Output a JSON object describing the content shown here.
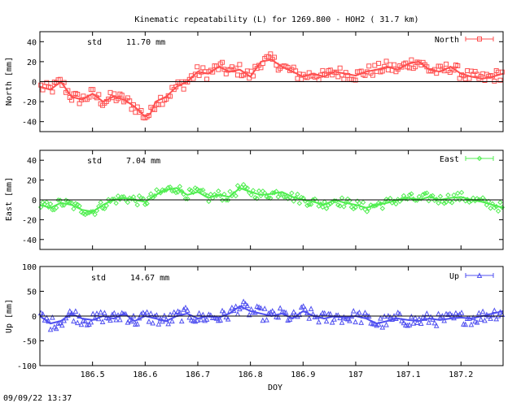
{
  "title": "Kinematic repeatability (L) for 1269.800 - HOH2  ( 31.7 km)",
  "timestamp": "09/09/22 13:37",
  "xlabel": "DOY",
  "std_label": "std",
  "colors": {
    "north": "#ff5050",
    "east": "#50ee50",
    "up": "#5050f0"
  },
  "chart_data": [
    {
      "type": "scatter",
      "name": "North",
      "ylabel": "North [mm]",
      "std": "11.70 mm",
      "marker": "square",
      "xlim": [
        186.4,
        187.28
      ],
      "ylim": [
        -50,
        50
      ],
      "yticks": [
        -40,
        -20,
        0,
        20,
        40
      ],
      "xticks": [
        186.5,
        186.6,
        186.7,
        186.8,
        186.9,
        187.0,
        187.1,
        187.2
      ],
      "xtick_labels": [],
      "grid": false,
      "legend": "top-right",
      "x": [
        186.4,
        186.42,
        186.44,
        186.46,
        186.48,
        186.5,
        186.52,
        186.54,
        186.56,
        186.58,
        186.6,
        186.61,
        186.62,
        186.64,
        186.66,
        186.68,
        186.7,
        186.72,
        186.74,
        186.76,
        186.78,
        186.8,
        186.82,
        186.84,
        186.86,
        186.88,
        186.9,
        186.92,
        186.94,
        186.96,
        186.98,
        187.0,
        187.02,
        187.04,
        187.06,
        187.08,
        187.1,
        187.12,
        187.14,
        187.16,
        187.18,
        187.2,
        187.22,
        187.24,
        187.26,
        187.28
      ],
      "y": [
        -5,
        -8,
        0,
        -15,
        -18,
        -12,
        -20,
        -15,
        -18,
        -25,
        -35,
        -32,
        -20,
        -15,
        -5,
        0,
        10,
        8,
        15,
        10,
        12,
        5,
        20,
        22,
        15,
        10,
        5,
        8,
        5,
        10,
        8,
        6,
        10,
        12,
        15,
        12,
        18,
        20,
        12,
        10,
        15,
        8,
        5,
        3,
        5,
        8
      ],
      "spread": 6
    },
    {
      "type": "scatter",
      "name": "East",
      "ylabel": "East [mm]",
      "std": "7.04 mm",
      "marker": "diamond",
      "xlim": [
        186.4,
        187.28
      ],
      "ylim": [
        -50,
        50
      ],
      "yticks": [
        -40,
        -20,
        0,
        20,
        40
      ],
      "xticks": [
        186.5,
        186.6,
        186.7,
        186.8,
        186.9,
        187.0,
        187.1,
        187.2
      ],
      "xtick_labels": [],
      "grid": false,
      "legend": "top-right",
      "x": [
        186.4,
        186.42,
        186.44,
        186.46,
        186.48,
        186.5,
        186.52,
        186.54,
        186.56,
        186.58,
        186.6,
        186.62,
        186.64,
        186.66,
        186.68,
        186.7,
        186.72,
        186.74,
        186.76,
        186.78,
        186.8,
        186.82,
        186.84,
        186.86,
        186.88,
        186.9,
        186.92,
        186.94,
        186.96,
        186.98,
        187.0,
        187.02,
        187.04,
        187.06,
        187.08,
        187.1,
        187.12,
        187.14,
        187.16,
        187.18,
        187.2,
        187.22,
        187.24,
        187.26,
        187.28
      ],
      "y": [
        -5,
        -8,
        -3,
        -5,
        -10,
        -12,
        -5,
        0,
        2,
        0,
        -2,
        5,
        10,
        12,
        5,
        8,
        2,
        5,
        3,
        12,
        8,
        5,
        6,
        8,
        3,
        0,
        -2,
        -5,
        0,
        -3,
        -5,
        -8,
        -5,
        -3,
        0,
        2,
        0,
        3,
        0,
        2,
        3,
        0,
        -2,
        -5,
        -8
      ],
      "spread": 5
    },
    {
      "type": "scatter",
      "name": "Up",
      "ylabel": "Up [mm]",
      "std": "14.67 mm",
      "marker": "triangle",
      "xlim": [
        186.4,
        187.28
      ],
      "ylim": [
        -100,
        100
      ],
      "yticks": [
        -100,
        -50,
        0,
        50,
        100
      ],
      "xticks": [
        186.5,
        186.6,
        186.7,
        186.8,
        186.9,
        187.0,
        187.1,
        187.2
      ],
      "xtick_labels": [
        "186.5",
        "186.6",
        "186.7",
        "186.8",
        "186.9",
        "187",
        "187.1",
        "187.2"
      ],
      "grid": false,
      "legend": "top-right",
      "x": [
        186.4,
        186.42,
        186.44,
        186.46,
        186.48,
        186.5,
        186.52,
        186.54,
        186.56,
        186.58,
        186.6,
        186.62,
        186.64,
        186.66,
        186.68,
        186.7,
        186.72,
        186.74,
        186.76,
        186.78,
        186.8,
        186.82,
        186.84,
        186.86,
        186.88,
        186.9,
        186.92,
        186.94,
        186.96,
        186.98,
        187.0,
        187.02,
        187.04,
        187.06,
        187.08,
        187.1,
        187.12,
        187.14,
        187.16,
        187.18,
        187.2,
        187.22,
        187.24,
        187.26,
        187.28
      ],
      "y": [
        0,
        -15,
        -10,
        5,
        -5,
        -8,
        0,
        -5,
        5,
        -10,
        0,
        -5,
        -10,
        0,
        5,
        -5,
        0,
        -3,
        5,
        20,
        10,
        5,
        0,
        5,
        -5,
        10,
        0,
        -5,
        0,
        -3,
        0,
        -5,
        -15,
        -10,
        -5,
        -8,
        -10,
        -5,
        -8,
        -5,
        -3,
        -5,
        0,
        5,
        10
      ],
      "spread": 13
    }
  ]
}
